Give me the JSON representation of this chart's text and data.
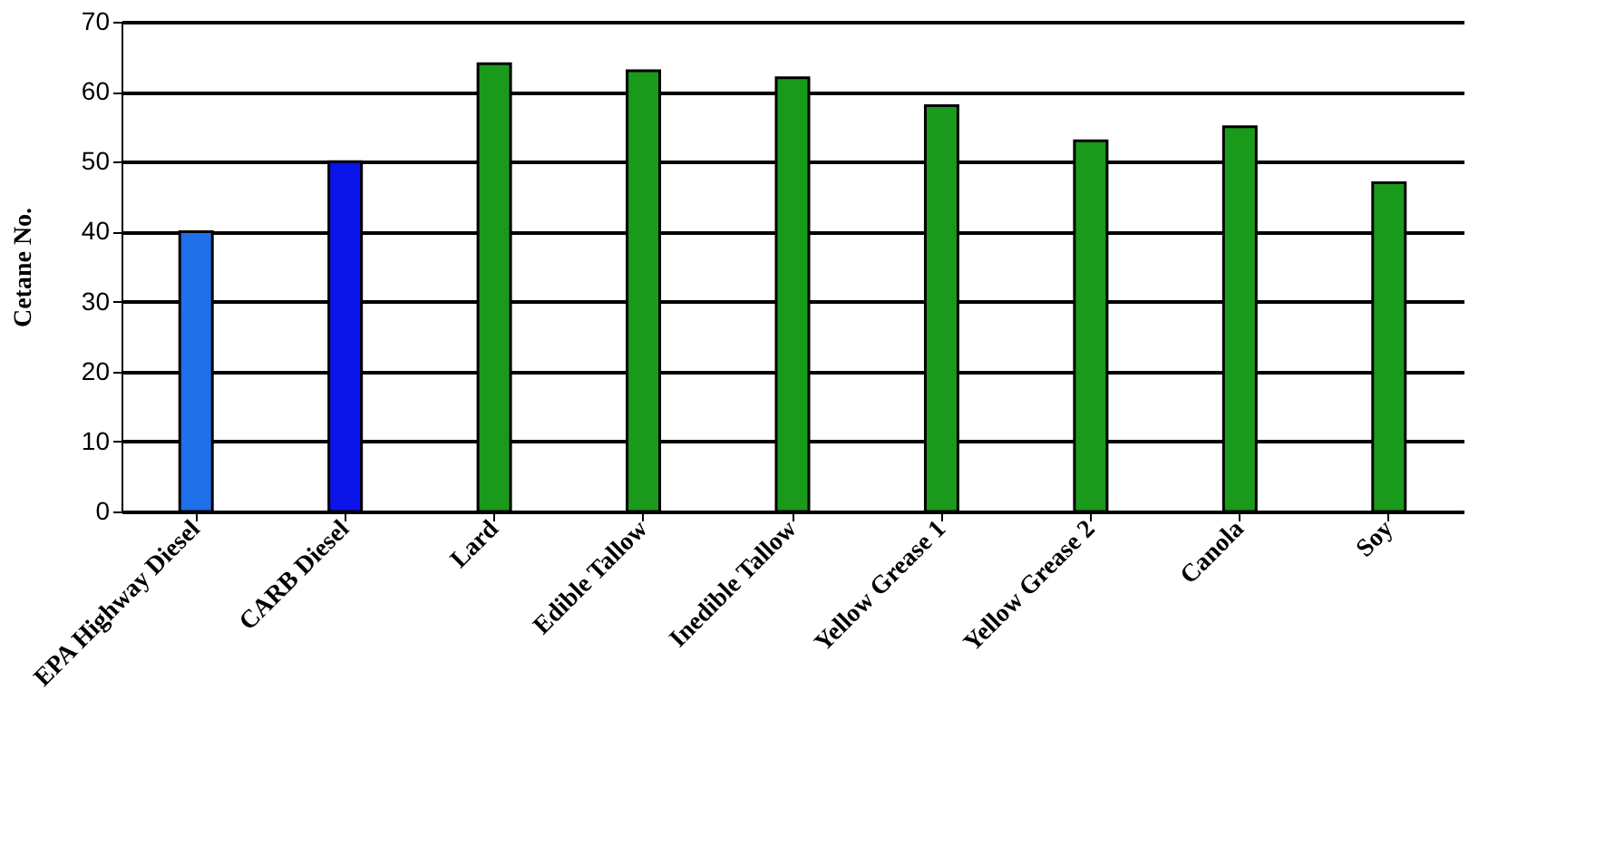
{
  "chart_data": {
    "type": "bar",
    "ylabel": "Cetane No.",
    "categories": [
      "EPA Highway Diesel",
      "CARB Diesel",
      "Lard",
      "Edible Tallow",
      "Inedible Tallow",
      "Yellow Grease 1",
      "Yellow Grease 2",
      "Canola",
      "Soy"
    ],
    "values": [
      40,
      50,
      64,
      63,
      62,
      58,
      53,
      55,
      47
    ],
    "colors": [
      "#1f6fe8",
      "#0a14e8",
      "#1a9a1a",
      "#1a9a1a",
      "#1a9a1a",
      "#1a9a1a",
      "#1a9a1a",
      "#1a9a1a",
      "#1a9a1a"
    ],
    "ylim": [
      0,
      70
    ],
    "yticks": [
      0,
      10,
      20,
      30,
      40,
      50,
      60,
      70
    ],
    "grid": "y"
  }
}
